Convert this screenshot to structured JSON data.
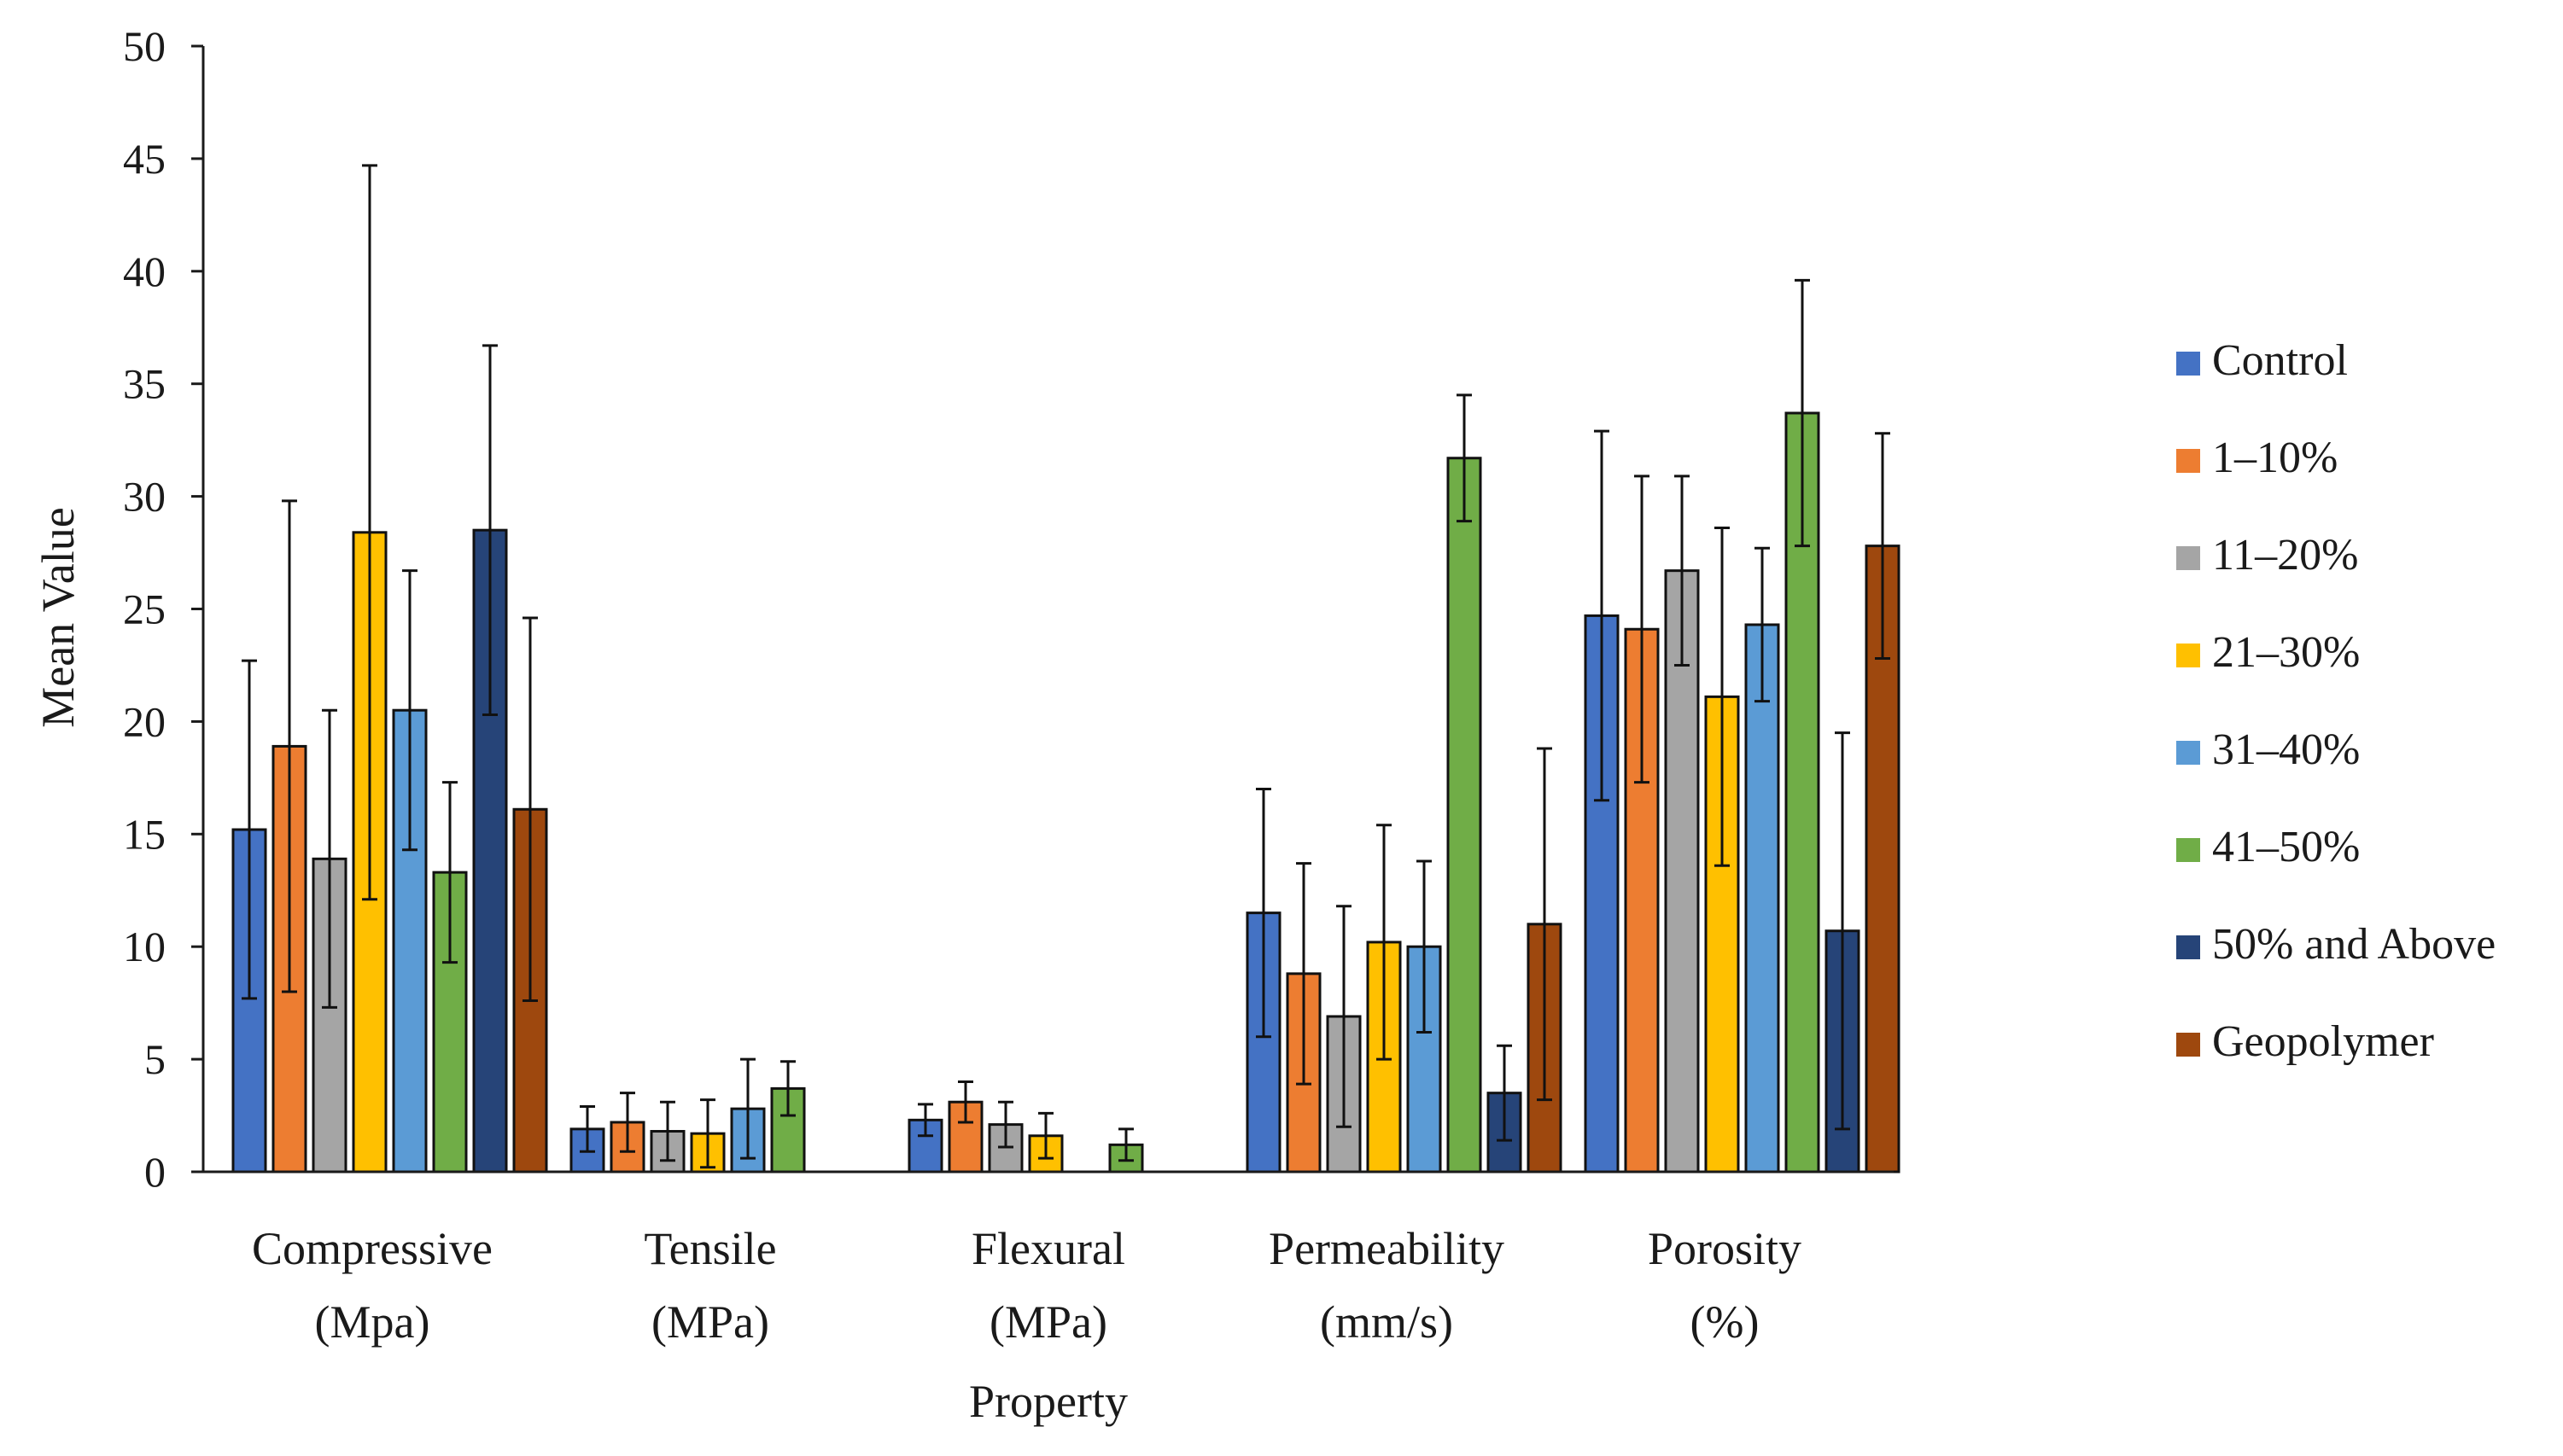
{
  "chart_data": {
    "type": "bar",
    "xlabel": "Property",
    "ylabel": "Mean Value",
    "ylim": [
      0,
      50
    ],
    "yticks": [
      0,
      5,
      10,
      15,
      20,
      25,
      30,
      35,
      40,
      45,
      50
    ],
    "grid": false,
    "legend_position": "right",
    "categories": [
      [
        "Compressive",
        "(Mpa)"
      ],
      [
        "Tensile",
        "(MPa)"
      ],
      [
        "Flexural",
        "(MPa)"
      ],
      [
        "Permeability",
        "(mm/s)"
      ],
      [
        "Porosity",
        "(%)"
      ]
    ],
    "series": [
      {
        "name": "Control",
        "color": "#4472C4",
        "values": [
          15.2,
          1.9,
          2.3,
          11.5,
          24.7
        ],
        "errors": [
          7.5,
          1.0,
          0.7,
          5.5,
          8.2
        ]
      },
      {
        "name": "1–10%",
        "color": "#ED7D31",
        "values": [
          18.9,
          2.2,
          3.1,
          8.8,
          24.1
        ],
        "errors": [
          10.9,
          1.3,
          0.9,
          4.9,
          6.8
        ]
      },
      {
        "name": "11–20%",
        "color": "#A5A5A5",
        "values": [
          13.9,
          1.8,
          2.1,
          6.9,
          26.7
        ],
        "errors": [
          6.6,
          1.3,
          1.0,
          4.9,
          4.2
        ]
      },
      {
        "name": "21–30%",
        "color": "#FFC000",
        "values": [
          28.4,
          1.7,
          1.6,
          10.2,
          21.1
        ],
        "errors": [
          16.3,
          1.5,
          1.0,
          5.2,
          7.5
        ]
      },
      {
        "name": "31–40%",
        "color": "#5B9BD5",
        "values": [
          20.5,
          2.8,
          null,
          10.0,
          24.3
        ],
        "errors": [
          6.2,
          2.2,
          null,
          3.8,
          3.4
        ]
      },
      {
        "name": "41–50%",
        "color": "#70AD47",
        "values": [
          13.3,
          3.7,
          1.2,
          31.7,
          33.7
        ],
        "errors": [
          4.0,
          1.2,
          0.7,
          2.8,
          5.9
        ]
      },
      {
        "name": "50% and Above",
        "color": "#264478",
        "values": [
          28.5,
          null,
          null,
          3.5,
          10.7
        ],
        "errors": [
          8.2,
          null,
          null,
          2.1,
          8.8
        ]
      },
      {
        "name": "Geopolymer",
        "color": "#9E480E",
        "values": [
          16.1,
          null,
          null,
          11.0,
          27.8
        ],
        "errors": [
          8.5,
          null,
          null,
          7.8,
          5.0
        ]
      }
    ]
  }
}
